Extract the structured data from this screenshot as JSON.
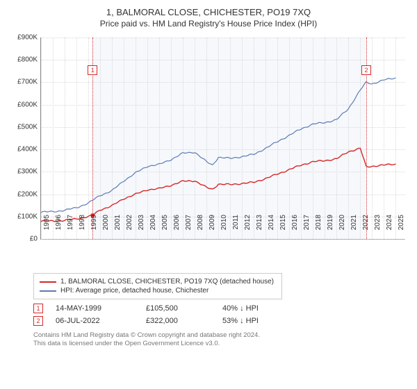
{
  "title": "1, BALMORAL CLOSE, CHICHESTER, PO19 7XQ",
  "subtitle": "Price paid vs. HM Land Registry's House Price Index (HPI)",
  "chart": {
    "type": "line",
    "x_years": [
      1995,
      1996,
      1997,
      1998,
      1999,
      2000,
      2001,
      2002,
      2003,
      2004,
      2005,
      2006,
      2007,
      2008,
      2009,
      2010,
      2011,
      2012,
      2013,
      2014,
      2015,
      2016,
      2017,
      2018,
      2019,
      2020,
      2021,
      2022,
      2023,
      2024,
      2025
    ],
    "xlim": [
      1995,
      2025.8
    ],
    "ylim": [
      0,
      900
    ],
    "ytick_step": 100,
    "ytick_prefix": "£",
    "ytick_suffix": "K",
    "shade_start": 1999.37,
    "shade_end": 2022.51,
    "grid_color": "#d9d9d9",
    "background_color": "#ffffff",
    "series": [
      {
        "name": "1, BALMORAL CLOSE, CHICHESTER, PO19 7XQ (detached house)",
        "color": "#d62728",
        "width": 1.4,
        "data": [
          [
            1995,
            80
          ],
          [
            1996,
            80
          ],
          [
            1997,
            83
          ],
          [
            1998,
            90
          ],
          [
            1999,
            100
          ],
          [
            1999.37,
            105.5
          ],
          [
            2000,
            130
          ],
          [
            2001,
            148
          ],
          [
            2002,
            180
          ],
          [
            2003,
            200
          ],
          [
            2004,
            220
          ],
          [
            2005,
            225
          ],
          [
            2006,
            240
          ],
          [
            2007,
            258
          ],
          [
            2008,
            260
          ],
          [
            2009,
            230
          ],
          [
            2009.5,
            222
          ],
          [
            2010,
            245
          ],
          [
            2011,
            243
          ],
          [
            2012,
            248
          ],
          [
            2013,
            253
          ],
          [
            2014,
            270
          ],
          [
            2015,
            290
          ],
          [
            2016,
            310
          ],
          [
            2017,
            330
          ],
          [
            2018,
            345
          ],
          [
            2019,
            350
          ],
          [
            2020,
            358
          ],
          [
            2021,
            390
          ],
          [
            2022,
            405
          ],
          [
            2022.51,
            322
          ],
          [
            2023,
            325
          ],
          [
            2024,
            330
          ],
          [
            2025,
            335
          ]
        ]
      },
      {
        "name": "HPI: Average price, detached house, Chichester",
        "color": "#5b7bb4",
        "width": 1.2,
        "data": [
          [
            1995,
            120
          ],
          [
            1996,
            122
          ],
          [
            1997,
            128
          ],
          [
            1998,
            140
          ],
          [
            1999,
            160
          ],
          [
            2000,
            195
          ],
          [
            2001,
            215
          ],
          [
            2002,
            260
          ],
          [
            2003,
            295
          ],
          [
            2004,
            325
          ],
          [
            2005,
            333
          ],
          [
            2006,
            355
          ],
          [
            2007,
            383
          ],
          [
            2008,
            388
          ],
          [
            2009,
            345
          ],
          [
            2009.5,
            330
          ],
          [
            2010,
            365
          ],
          [
            2011,
            360
          ],
          [
            2012,
            368
          ],
          [
            2013,
            378
          ],
          [
            2014,
            405
          ],
          [
            2015,
            435
          ],
          [
            2016,
            463
          ],
          [
            2017,
            492
          ],
          [
            2018,
            513
          ],
          [
            2019,
            520
          ],
          [
            2020,
            533
          ],
          [
            2021,
            582
          ],
          [
            2022,
            665
          ],
          [
            2022.5,
            700
          ],
          [
            2023,
            693
          ],
          [
            2024,
            710
          ],
          [
            2025,
            720
          ]
        ]
      }
    ],
    "markers": [
      {
        "n": "1",
        "year": 1999.37,
        "color": "#d62728",
        "box_y": 40
      },
      {
        "n": "2",
        "year": 2022.51,
        "color": "#d62728",
        "box_y": 40
      }
    ],
    "point_marker": {
      "year": 1999.37,
      "value": 105.5,
      "color": "#d62728"
    }
  },
  "legend": [
    {
      "color": "#d62728",
      "label": "1, BALMORAL CLOSE, CHICHESTER, PO19 7XQ (detached house)"
    },
    {
      "color": "#5b7bb4",
      "label": "HPI: Average price, detached house, Chichester"
    }
  ],
  "transactions": [
    {
      "n": "1",
      "color": "#d62728",
      "date": "14-MAY-1999",
      "price": "£105,500",
      "diff": "40% ↓ HPI"
    },
    {
      "n": "2",
      "color": "#d62728",
      "date": "06-JUL-2022",
      "price": "£322,000",
      "diff": "53% ↓ HPI"
    }
  ],
  "footnote_l1": "Contains HM Land Registry data © Crown copyright and database right 2024.",
  "footnote_l2": "This data is licensed under the Open Government Licence v3.0."
}
